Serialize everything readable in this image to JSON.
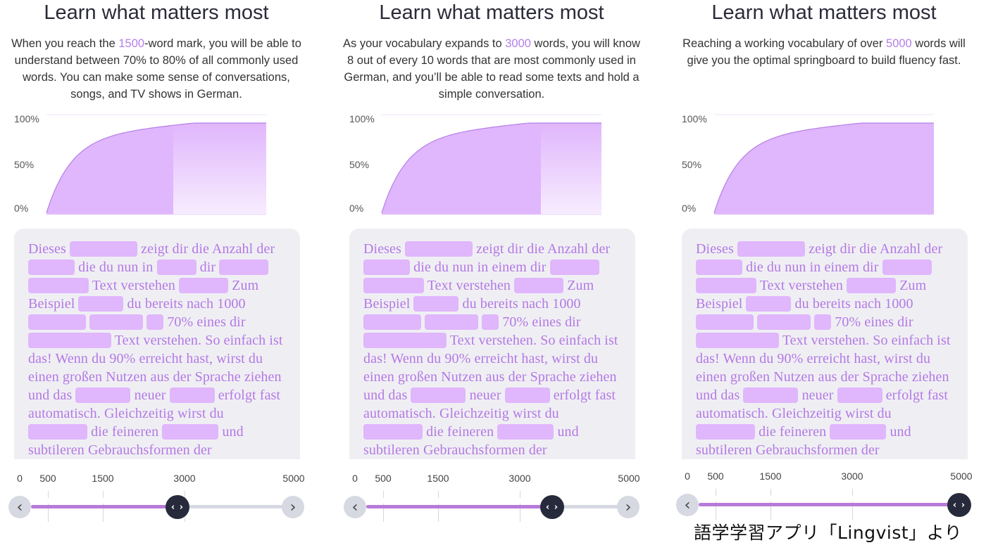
{
  "panels": [
    {
      "title": "Learn what matters most",
      "intro_before": "When you reach the ",
      "intro_highlight": "1500",
      "intro_after": "-word mark, you will be able to understand between 70% to 80% of all commonly used words. You can make some sense of conversations, songs, and TV shows in German.",
      "selected_words": 3000
    },
    {
      "title": "Learn what matters most",
      "intro_before": "As your vocabulary expands to ",
      "intro_highlight": "3000",
      "intro_after": " words, you will know 8 out of every 10 words that are most commonly used in German, and you’ll be able to read some texts and hold a simple conversation.",
      "selected_words": 3500
    },
    {
      "title": "Learn what matters most",
      "intro_before": "Reaching a working vocabulary of over ",
      "intro_highlight": "5000",
      "intro_after": " words will give you the optimal springboard to build fluency fast.",
      "selected_words": 5000
    }
  ],
  "chart": {
    "y_ticks": [
      "100%",
      "50%",
      "0%"
    ],
    "x_ticks": [
      "0",
      "500",
      "1500",
      "3000",
      "5000"
    ],
    "colors": {
      "fill": "#e0b6fc",
      "line": "#b57fe8",
      "fade": "#f7ecff"
    }
  },
  "card_text": [
    {
      "t": "Dieses "
    },
    {
      "b": 96
    },
    {
      "t": " zeigt dir die Anzahl der "
    },
    {
      "b": 66
    },
    {
      "t": " die du nun in einem dir "
    },
    {
      "b": 70
    },
    {
      "t": " "
    },
    {
      "b": 86
    },
    {
      "t": " Text verstehen "
    },
    {
      "b": 70
    },
    {
      "t": " Zum "
    },
    {
      "t": "Beispiel "
    },
    {
      "b": 64
    },
    {
      "t": " du bereits nach 1000 "
    },
    {
      "b": 82
    },
    {
      "t": " "
    },
    {
      "b": 76
    },
    {
      "t": " "
    },
    {
      "b": 24
    },
    {
      "t": " 70%  eines dir "
    },
    {
      "b": 118
    },
    {
      "t": " Text verstehen. So einfach ist das! Wenn du 90% erreicht hast, wirst du einen großen Nutzen aus der Sprache ziehen und das "
    },
    {
      "b": 78
    },
    {
      "t": " neuer "
    },
    {
      "b": 64
    },
    {
      "t": " erfolgt fast automatisch. Gleichzeitig wirst du "
    },
    {
      "b": 84
    },
    {
      "t": " die feineren "
    },
    {
      "b": 80
    },
    {
      "t": " und subtileren Gebrauchsformen der"
    }
  ],
  "card_text_first_panel_variant": {
    "replace_from": " die du nun in einem dir ",
    "with": " die du nun in ",
    "insert_blank": 56,
    "then": " dir "
  },
  "caption": "語学学習アプリ「Lingvist」より"
}
